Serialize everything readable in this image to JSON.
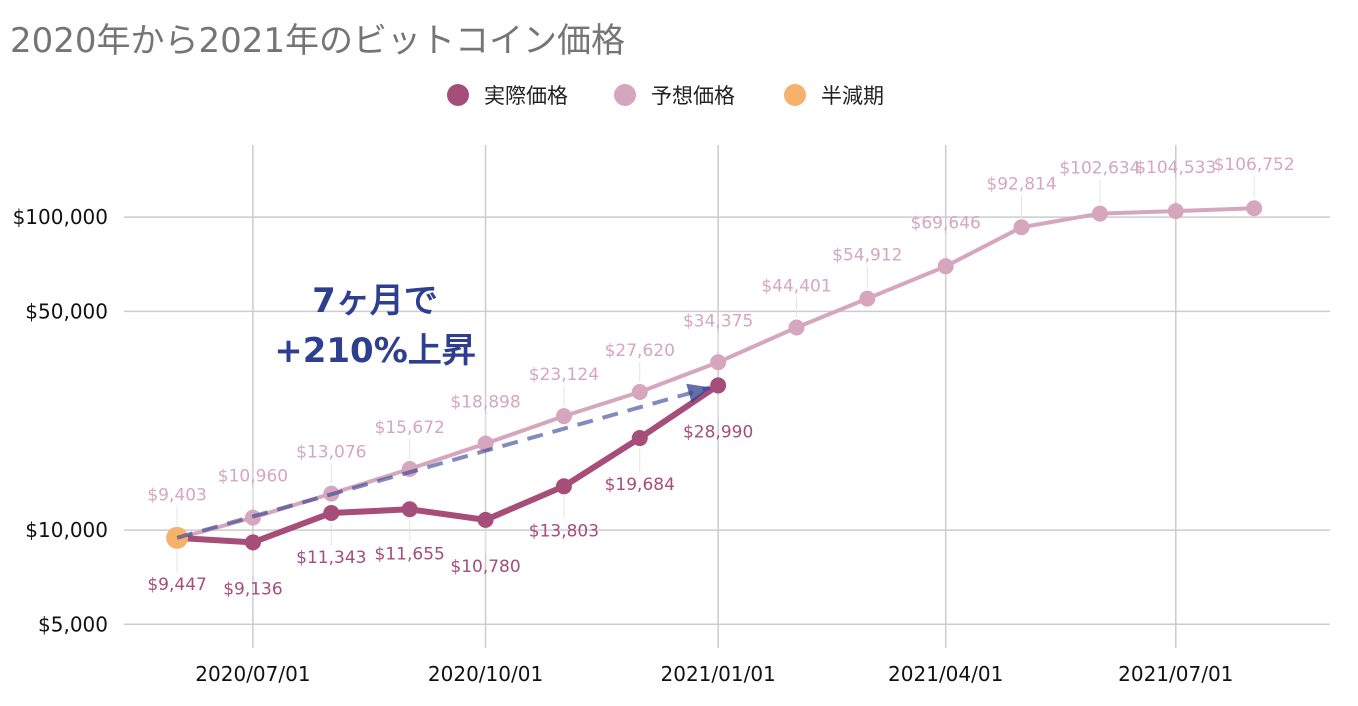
{
  "chart_data": {
    "type": "line",
    "title": "2020年から2021年のビットコイン価格",
    "xlabel": "",
    "ylabel": "",
    "y_scale": "log",
    "ylim": [
      4200,
      170000
    ],
    "xlim": [
      "2020-05-11",
      "2021-08-31"
    ],
    "y_ticks": [
      5000,
      10000,
      50000,
      100000
    ],
    "y_tick_labels": [
      "$5,000",
      "$10,000",
      "$50,000",
      "$100,000"
    ],
    "x_ticks": [
      "2020-07-01",
      "2020-10-01",
      "2021-01-01",
      "2021-04-01",
      "2021-07-01"
    ],
    "x_tick_labels": [
      "2020/07/01",
      "2020/10/01",
      "2021/01/01",
      "2021/04/01",
      "2021/07/01"
    ],
    "grid": true,
    "legend_position": "top-center",
    "legend": [
      {
        "name": "実際価格",
        "color": "#a64d79"
      },
      {
        "name": "予想価格",
        "color": "#d5a6bd"
      },
      {
        "name": "半減期",
        "color": "#f6b26b"
      }
    ],
    "series": [
      {
        "name": "実際価格",
        "color": "#a64d79",
        "points": [
          {
            "x": "2020-06-01",
            "y": 9447,
            "label": "$9,447"
          },
          {
            "x": "2020-07-01",
            "y": 9136,
            "label": "$9,136"
          },
          {
            "x": "2020-08-01",
            "y": 11343,
            "label": "$11,343"
          },
          {
            "x": "2020-09-01",
            "y": 11655,
            "label": "$11,655"
          },
          {
            "x": "2020-10-01",
            "y": 10780,
            "label": "$10,780"
          },
          {
            "x": "2020-11-01",
            "y": 13803,
            "label": "$13,803"
          },
          {
            "x": "2020-12-01",
            "y": 19684,
            "label": "$19,684"
          },
          {
            "x": "2021-01-01",
            "y": 28990,
            "label": "$28,990"
          }
        ]
      },
      {
        "name": "予想価格",
        "color": "#d5a6bd",
        "points": [
          {
            "x": "2020-06-01",
            "y": 9403,
            "label": "$9,403"
          },
          {
            "x": "2020-07-01",
            "y": 10960,
            "label": "$10,960"
          },
          {
            "x": "2020-08-01",
            "y": 13076,
            "label": "$13,076"
          },
          {
            "x": "2020-09-01",
            "y": 15672,
            "label": "$15,672"
          },
          {
            "x": "2020-10-01",
            "y": 18898,
            "label": "$18,898"
          },
          {
            "x": "2020-11-01",
            "y": 23124,
            "label": "$23,124"
          },
          {
            "x": "2020-12-01",
            "y": 27620,
            "label": "$27,620"
          },
          {
            "x": "2021-01-01",
            "y": 34375,
            "label": "$34,375"
          },
          {
            "x": "2021-02-01",
            "y": 44401,
            "label": "$44,401"
          },
          {
            "x": "2021-03-01",
            "y": 54912,
            "label": "$54,912"
          },
          {
            "x": "2021-04-01",
            "y": 69646,
            "label": "$69,646"
          },
          {
            "x": "2021-05-01",
            "y": 92814,
            "label": "$92,814"
          },
          {
            "x": "2021-06-01",
            "y": 102634,
            "label": "$102,634"
          },
          {
            "x": "2021-07-01",
            "y": 104533,
            "label": "$104,533"
          },
          {
            "x": "2021-08-01",
            "y": 106752,
            "label": "$106,752"
          }
        ]
      },
      {
        "name": "半減期",
        "color": "#f6b26b",
        "points": [
          {
            "x": "2020-06-01",
            "y": 9447
          }
        ]
      }
    ],
    "annotations": [
      {
        "lines": [
          "7ヶ月で",
          "+210%上昇"
        ],
        "color": "#2e3f8f",
        "arrow": {
          "from": {
            "x": "2020-06-01",
            "y": 9447
          },
          "to": {
            "x": "2021-01-01",
            "y": 28990
          }
        }
      }
    ]
  }
}
